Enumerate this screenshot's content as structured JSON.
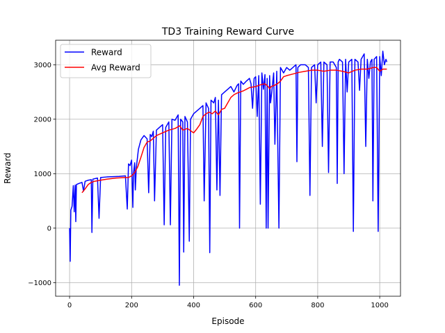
{
  "chart_data": {
    "type": "line",
    "title": "TD3 Training Reward Curve",
    "xlabel": "Episode",
    "ylabel": "Reward",
    "xlim": [
      -45,
      1067
    ],
    "ylim": [
      -1250,
      3450
    ],
    "grid": true,
    "legend_position": "upper-left",
    "x_ticks": [
      0,
      200,
      400,
      600,
      800,
      1000
    ],
    "y_ticks": [
      -1000,
      0,
      1000,
      2000,
      3000
    ],
    "x_tick_labels": [
      "0",
      "200",
      "400",
      "600",
      "800",
      "1000"
    ],
    "y_tick_labels": [
      "−1000",
      "0",
      "1000",
      "2000",
      "3000"
    ],
    "series": [
      {
        "name": "Reward",
        "color": "#0000ff",
        "points": [
          [
            0,
            0
          ],
          [
            2,
            -610
          ],
          [
            4,
            330
          ],
          [
            8,
            400
          ],
          [
            12,
            780
          ],
          [
            15,
            300
          ],
          [
            18,
            790
          ],
          [
            20,
            120
          ],
          [
            22,
            800
          ],
          [
            30,
            820
          ],
          [
            40,
            840
          ],
          [
            45,
            680
          ],
          [
            50,
            860
          ],
          [
            60,
            880
          ],
          [
            70,
            890
          ],
          [
            72,
            -80
          ],
          [
            75,
            900
          ],
          [
            90,
            920
          ],
          [
            95,
            180
          ],
          [
            100,
            930
          ],
          [
            120,
            940
          ],
          [
            140,
            945
          ],
          [
            160,
            950
          ],
          [
            180,
            960
          ],
          [
            186,
            350
          ],
          [
            190,
            1180
          ],
          [
            195,
            1150
          ],
          [
            200,
            1250
          ],
          [
            204,
            380
          ],
          [
            206,
            1000
          ],
          [
            210,
            1200
          ],
          [
            212,
            700
          ],
          [
            215,
            1100
          ],
          [
            222,
            1450
          ],
          [
            230,
            1620
          ],
          [
            240,
            1700
          ],
          [
            250,
            1640
          ],
          [
            255,
            650
          ],
          [
            260,
            1720
          ],
          [
            265,
            1680
          ],
          [
            270,
            1780
          ],
          [
            274,
            500
          ],
          [
            280,
            1800
          ],
          [
            290,
            1850
          ],
          [
            300,
            1900
          ],
          [
            305,
            60
          ],
          [
            310,
            1850
          ],
          [
            320,
            1950
          ],
          [
            325,
            60
          ],
          [
            330,
            2000
          ],
          [
            340,
            1980
          ],
          [
            350,
            2080
          ],
          [
            354,
            -1050
          ],
          [
            358,
            2000
          ],
          [
            365,
            1950
          ],
          [
            368,
            -440
          ],
          [
            372,
            2050
          ],
          [
            380,
            1950
          ],
          [
            386,
            -240
          ],
          [
            390,
            2000
          ],
          [
            400,
            2100
          ],
          [
            410,
            2150
          ],
          [
            420,
            2200
          ],
          [
            430,
            2250
          ],
          [
            434,
            500
          ],
          [
            440,
            2300
          ],
          [
            448,
            2200
          ],
          [
            452,
            -450
          ],
          [
            456,
            2350
          ],
          [
            465,
            2300
          ],
          [
            470,
            2400
          ],
          [
            475,
            700
          ],
          [
            480,
            2350
          ],
          [
            485,
            600
          ],
          [
            490,
            2450
          ],
          [
            500,
            2500
          ],
          [
            510,
            2550
          ],
          [
            520,
            2600
          ],
          [
            530,
            2500
          ],
          [
            540,
            2620
          ],
          [
            545,
            2650
          ],
          [
            548,
            0
          ],
          [
            552,
            2700
          ],
          [
            560,
            2640
          ],
          [
            570,
            2700
          ],
          [
            580,
            2750
          ],
          [
            585,
            2650
          ],
          [
            590,
            2200
          ],
          [
            595,
            2750
          ],
          [
            600,
            2780
          ],
          [
            605,
            2050
          ],
          [
            610,
            2800
          ],
          [
            615,
            440
          ],
          [
            620,
            2850
          ],
          [
            625,
            2550
          ],
          [
            630,
            2820
          ],
          [
            634,
            0
          ],
          [
            637,
            2750
          ],
          [
            640,
            0
          ],
          [
            645,
            2800
          ],
          [
            648,
            2300
          ],
          [
            652,
            2500
          ],
          [
            658,
            2850
          ],
          [
            662,
            1540
          ],
          [
            668,
            2880
          ],
          [
            675,
            0
          ],
          [
            680,
            2950
          ],
          [
            690,
            2850
          ],
          [
            700,
            2950
          ],
          [
            710,
            2900
          ],
          [
            720,
            2950
          ],
          [
            730,
            3000
          ],
          [
            733,
            1220
          ],
          [
            736,
            2950
          ],
          [
            745,
            3000
          ],
          [
            760,
            3000
          ],
          [
            770,
            2950
          ],
          [
            775,
            600
          ],
          [
            780,
            2950
          ],
          [
            790,
            3000
          ],
          [
            795,
            2300
          ],
          [
            800,
            3000
          ],
          [
            810,
            3050
          ],
          [
            815,
            1500
          ],
          [
            820,
            3050
          ],
          [
            830,
            3000
          ],
          [
            835,
            1020
          ],
          [
            840,
            3050
          ],
          [
            850,
            3050
          ],
          [
            860,
            2950
          ],
          [
            863,
            820
          ],
          [
            866,
            3050
          ],
          [
            870,
            3100
          ],
          [
            880,
            3050
          ],
          [
            885,
            1000
          ],
          [
            890,
            3100
          ],
          [
            895,
            2500
          ],
          [
            900,
            3050
          ],
          [
            910,
            3100
          ],
          [
            915,
            -60
          ],
          [
            920,
            3100
          ],
          [
            930,
            3050
          ],
          [
            935,
            2530
          ],
          [
            940,
            3100
          ],
          [
            950,
            3200
          ],
          [
            955,
            1500
          ],
          [
            960,
            3100
          ],
          [
            965,
            2750
          ],
          [
            970,
            3050
          ],
          [
            975,
            3100
          ],
          [
            978,
            500
          ],
          [
            982,
            3100
          ],
          [
            990,
            3150
          ],
          [
            995,
            -60
          ],
          [
            1000,
            3150
          ],
          [
            1005,
            2800
          ],
          [
            1010,
            3250
          ],
          [
            1015,
            3000
          ],
          [
            1020,
            3100
          ],
          [
            1023,
            3050
          ]
        ]
      },
      {
        "name": "Avg Reward",
        "color": "#ff0000",
        "points": [
          [
            40,
            650
          ],
          [
            50,
            720
          ],
          [
            60,
            800
          ],
          [
            70,
            840
          ],
          [
            80,
            860
          ],
          [
            100,
            880
          ],
          [
            120,
            900
          ],
          [
            150,
            920
          ],
          [
            180,
            930
          ],
          [
            190,
            930
          ],
          [
            200,
            960
          ],
          [
            210,
            1020
          ],
          [
            220,
            1130
          ],
          [
            230,
            1300
          ],
          [
            240,
            1480
          ],
          [
            250,
            1580
          ],
          [
            260,
            1600
          ],
          [
            270,
            1650
          ],
          [
            280,
            1700
          ],
          [
            300,
            1750
          ],
          [
            320,
            1800
          ],
          [
            340,
            1830
          ],
          [
            355,
            1880
          ],
          [
            365,
            1800
          ],
          [
            380,
            1830
          ],
          [
            400,
            1750
          ],
          [
            410,
            1820
          ],
          [
            420,
            1900
          ],
          [
            430,
            2050
          ],
          [
            440,
            2100
          ],
          [
            450,
            2130
          ],
          [
            460,
            2100
          ],
          [
            470,
            2150
          ],
          [
            480,
            2080
          ],
          [
            490,
            2180
          ],
          [
            500,
            2200
          ],
          [
            510,
            2300
          ],
          [
            520,
            2400
          ],
          [
            530,
            2450
          ],
          [
            540,
            2480
          ],
          [
            550,
            2500
          ],
          [
            560,
            2520
          ],
          [
            570,
            2550
          ],
          [
            580,
            2580
          ],
          [
            600,
            2600
          ],
          [
            620,
            2640
          ],
          [
            630,
            2650
          ],
          [
            640,
            2600
          ],
          [
            645,
            2560
          ],
          [
            650,
            2600
          ],
          [
            660,
            2620
          ],
          [
            670,
            2650
          ],
          [
            680,
            2700
          ],
          [
            690,
            2780
          ],
          [
            700,
            2800
          ],
          [
            720,
            2830
          ],
          [
            740,
            2860
          ],
          [
            760,
            2880
          ],
          [
            780,
            2900
          ],
          [
            800,
            2900
          ],
          [
            820,
            2880
          ],
          [
            840,
            2900
          ],
          [
            860,
            2900
          ],
          [
            880,
            2880
          ],
          [
            900,
            2850
          ],
          [
            920,
            2900
          ],
          [
            940,
            2920
          ],
          [
            960,
            2920
          ],
          [
            980,
            2950
          ],
          [
            990,
            2950
          ],
          [
            1000,
            2880
          ],
          [
            1010,
            2920
          ],
          [
            1023,
            2920
          ]
        ]
      }
    ]
  }
}
